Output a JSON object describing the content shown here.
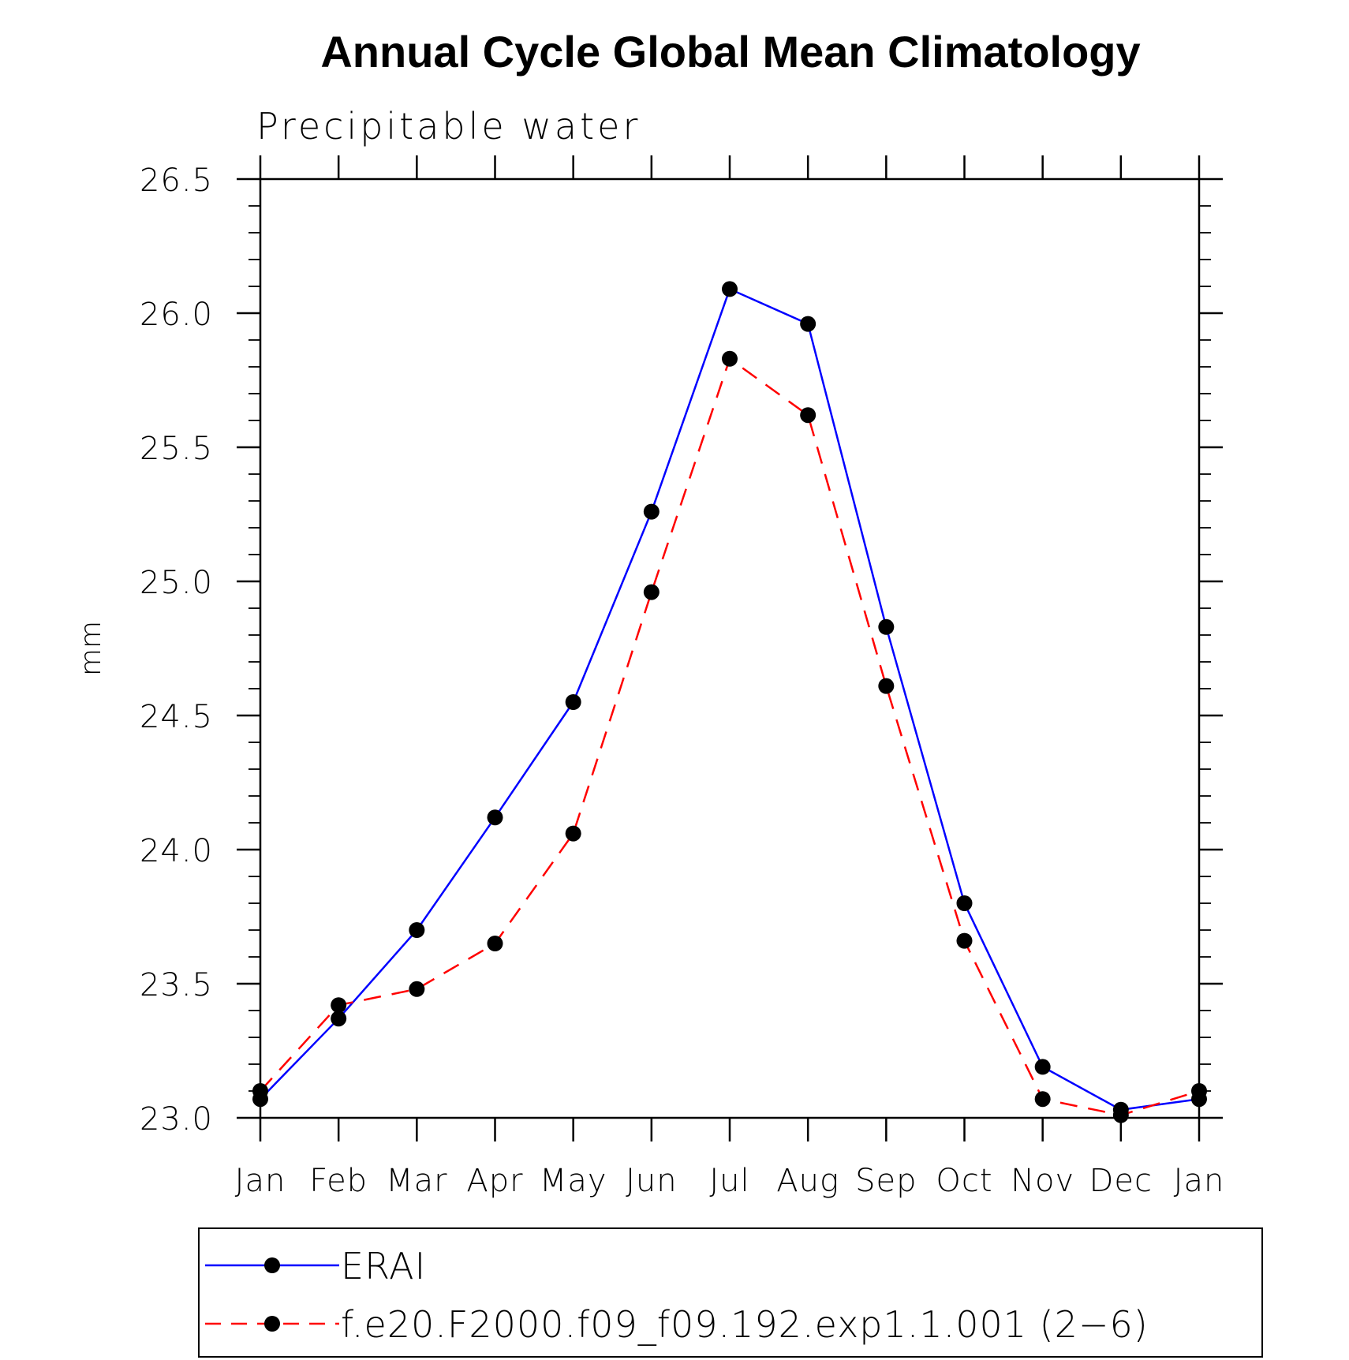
{
  "chart_data": {
    "type": "line",
    "title": "Annual Cycle Global Mean Climatology",
    "subtitle": "Precipitable water",
    "xlabel": "",
    "ylabel": "mm",
    "categories": [
      "Jan",
      "Feb",
      "Mar",
      "Apr",
      "May",
      "Jun",
      "Jul",
      "Aug",
      "Sep",
      "Oct",
      "Nov",
      "Dec",
      "Jan"
    ],
    "ylim": [
      23.0,
      26.5
    ],
    "yticks": [
      "23.0",
      "23.5",
      "24.0",
      "24.5",
      "25.0",
      "25.5",
      "26.0",
      "26.5"
    ],
    "grid": false,
    "legend_position": "bottom",
    "series": [
      {
        "name": "ERAI",
        "color": "#0000ff",
        "line_style": "solid",
        "values": [
          23.07,
          23.37,
          23.7,
          24.12,
          24.55,
          25.26,
          26.09,
          25.96,
          24.83,
          23.8,
          23.19,
          23.03,
          23.07
        ]
      },
      {
        "name": "f.e20.F2000.f09_f09.192.exp1.1.001 (2−6)",
        "color": "#ff0000",
        "line_style": "dashed",
        "values": [
          23.1,
          23.42,
          23.48,
          23.65,
          24.06,
          24.96,
          25.83,
          25.62,
          24.61,
          23.66,
          23.07,
          23.01,
          23.1
        ]
      }
    ]
  }
}
